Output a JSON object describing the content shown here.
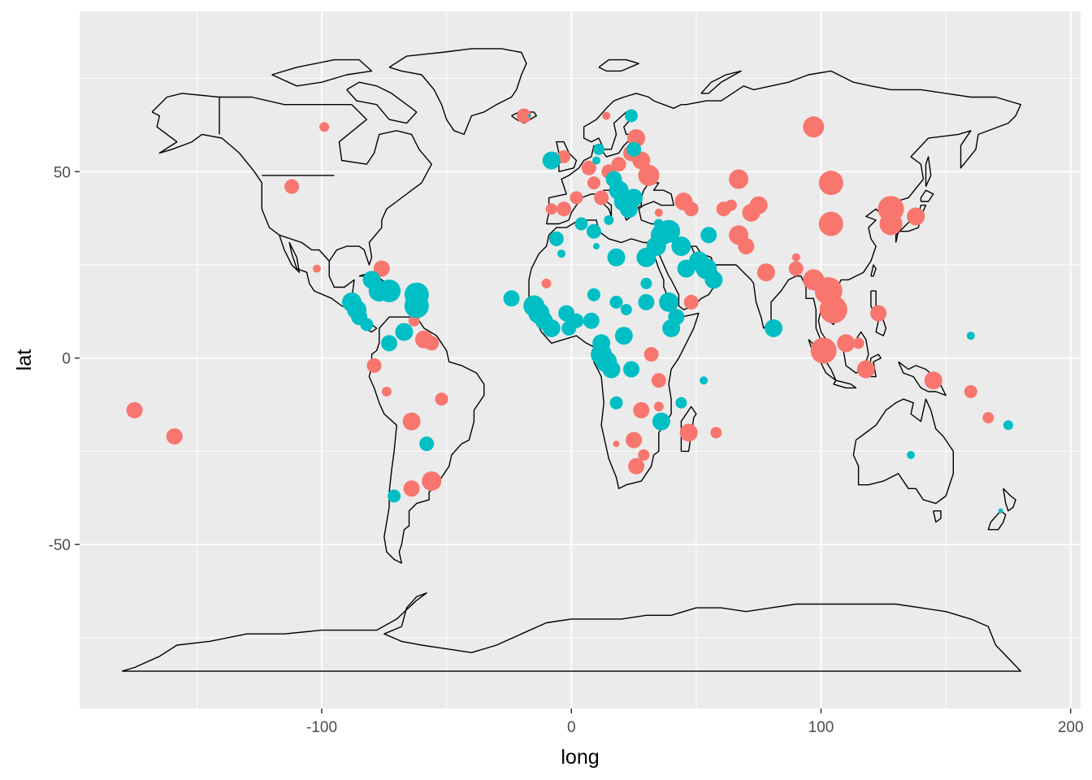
{
  "chart_data": {
    "type": "scatter",
    "title": "",
    "xlabel": "long",
    "ylabel": "lat",
    "xlim": [
      -197,
      204
    ],
    "ylim": [
      -94,
      93
    ],
    "x_ticks": [
      -100,
      0,
      100,
      200
    ],
    "y_ticks": [
      -50,
      0,
      50
    ],
    "x_tick_labels": [
      "-100",
      "0",
      "100",
      "200"
    ],
    "y_tick_labels": [
      "-50",
      "0",
      "50"
    ],
    "grid": true,
    "legend": "none",
    "colors": {
      "panel": "#ebebeb",
      "grid": "#ffffff",
      "outline": "#000000",
      "group_red": "#f8766d",
      "group_teal": "#00bfc4"
    },
    "series": [
      {
        "color": "#f8766d",
        "points": [
          {
            "x": -175,
            "y": -14,
            "size": 10
          },
          {
            "x": -159,
            "y": -21,
            "size": 10
          },
          {
            "x": -112,
            "y": 46,
            "size": 9
          },
          {
            "x": -99,
            "y": 62,
            "size": 6
          },
          {
            "x": -102,
            "y": 24,
            "size": 5
          },
          {
            "x": -76,
            "y": 24,
            "size": 10
          },
          {
            "x": -79,
            "y": -2,
            "size": 9
          },
          {
            "x": -74,
            "y": -9,
            "size": 6
          },
          {
            "x": -63,
            "y": 10,
            "size": 7
          },
          {
            "x": -59,
            "y": 5,
            "size": 11
          },
          {
            "x": -56,
            "y": 4,
            "size": 9
          },
          {
            "x": -52,
            "y": -11,
            "size": 8
          },
          {
            "x": -64,
            "y": -17,
            "size": 11
          },
          {
            "x": -64,
            "y": -35,
            "size": 10
          },
          {
            "x": -56,
            "y": -33,
            "size": 12
          },
          {
            "x": -19,
            "y": 65,
            "size": 9
          },
          {
            "x": -3,
            "y": 54,
            "size": 8
          },
          {
            "x": -8,
            "y": 40,
            "size": 7
          },
          {
            "x": -3,
            "y": 40,
            "size": 9
          },
          {
            "x": 2,
            "y": 43,
            "size": 8
          },
          {
            "x": 7,
            "y": 51,
            "size": 9
          },
          {
            "x": 9,
            "y": 47,
            "size": 8
          },
          {
            "x": 12,
            "y": 43,
            "size": 9
          },
          {
            "x": 15,
            "y": 50,
            "size": 9
          },
          {
            "x": 19,
            "y": 52,
            "size": 9
          },
          {
            "x": 26,
            "y": 59,
            "size": 11
          },
          {
            "x": 24,
            "y": 55,
            "size": 10
          },
          {
            "x": 28,
            "y": 53,
            "size": 11
          },
          {
            "x": 31,
            "y": 49,
            "size": 13
          },
          {
            "x": 35,
            "y": 39,
            "size": 5
          },
          {
            "x": 14,
            "y": 65,
            "size": 5
          },
          {
            "x": 45,
            "y": 42,
            "size": 11
          },
          {
            "x": 48,
            "y": 40,
            "size": 9
          },
          {
            "x": 61,
            "y": 40,
            "size": 9
          },
          {
            "x": 64,
            "y": 41,
            "size": 7
          },
          {
            "x": 67,
            "y": 48,
            "size": 12
          },
          {
            "x": 72,
            "y": 39,
            "size": 11
          },
          {
            "x": 75,
            "y": 41,
            "size": 11
          },
          {
            "x": 67,
            "y": 33,
            "size": 12
          },
          {
            "x": 70,
            "y": 30,
            "size": 10
          },
          {
            "x": 78,
            "y": 23,
            "size": 11
          },
          {
            "x": 90,
            "y": 27,
            "size": 5
          },
          {
            "x": 90,
            "y": 24,
            "size": 9
          },
          {
            "x": 97,
            "y": 62,
            "size": 13
          },
          {
            "x": 104,
            "y": 47,
            "size": 15
          },
          {
            "x": 104,
            "y": 36,
            "size": 15
          },
          {
            "x": 97,
            "y": 21,
            "size": 13
          },
          {
            "x": 103,
            "y": 18,
            "size": 17
          },
          {
            "x": 105,
            "y": 13,
            "size": 17
          },
          {
            "x": 101,
            "y": 2,
            "size": 16
          },
          {
            "x": 110,
            "y": 4,
            "size": 11
          },
          {
            "x": 115,
            "y": 4,
            "size": 7
          },
          {
            "x": 118,
            "y": -3,
            "size": 11
          },
          {
            "x": 128,
            "y": 40,
            "size": 16
          },
          {
            "x": 128,
            "y": 36,
            "size": 14
          },
          {
            "x": 138,
            "y": 38,
            "size": 11
          },
          {
            "x": 123,
            "y": 12,
            "size": 10
          },
          {
            "x": 145,
            "y": -6,
            "size": 11
          },
          {
            "x": 160,
            "y": -9,
            "size": 8
          },
          {
            "x": 167,
            "y": -16,
            "size": 7
          },
          {
            "x": -10,
            "y": 20,
            "size": 6
          },
          {
            "x": 32,
            "y": 1,
            "size": 9
          },
          {
            "x": 35,
            "y": -6,
            "size": 9
          },
          {
            "x": 35,
            "y": -13,
            "size": 6
          },
          {
            "x": 28,
            "y": -14,
            "size": 10
          },
          {
            "x": 25,
            "y": -22,
            "size": 10
          },
          {
            "x": 26,
            "y": -29,
            "size": 10
          },
          {
            "x": 29,
            "y": -26,
            "size": 7
          },
          {
            "x": 47,
            "y": -20,
            "size": 11
          },
          {
            "x": 58,
            "y": -20,
            "size": 7
          },
          {
            "x": 18,
            "y": -23,
            "size": 4
          },
          {
            "x": 48,
            "y": 15,
            "size": 9
          }
        ]
      },
      {
        "color": "#00bfc4",
        "points": [
          {
            "x": -88,
            "y": 15,
            "size": 12
          },
          {
            "x": -86,
            "y": 13,
            "size": 12
          },
          {
            "x": -85,
            "y": 11,
            "size": 10
          },
          {
            "x": -82,
            "y": 9,
            "size": 8
          },
          {
            "x": -80,
            "y": 21,
            "size": 11
          },
          {
            "x": -77,
            "y": 18,
            "size": 13
          },
          {
            "x": -73,
            "y": 18,
            "size": 14
          },
          {
            "x": -62,
            "y": 17,
            "size": 15
          },
          {
            "x": -62,
            "y": 14,
            "size": 15
          },
          {
            "x": -67,
            "y": 7,
            "size": 11
          },
          {
            "x": -73,
            "y": 4,
            "size": 10
          },
          {
            "x": -58,
            "y": -23,
            "size": 9
          },
          {
            "x": -71,
            "y": -37,
            "size": 8
          },
          {
            "x": -17,
            "y": 65,
            "size": 2
          },
          {
            "x": -8,
            "y": 53,
            "size": 11
          },
          {
            "x": -6,
            "y": 32,
            "size": 9
          },
          {
            "x": -4,
            "y": 28,
            "size": 5
          },
          {
            "x": 9,
            "y": 34,
            "size": 9
          },
          {
            "x": 15,
            "y": 37,
            "size": 6
          },
          {
            "x": 18,
            "y": 27,
            "size": 11
          },
          {
            "x": 30,
            "y": 27,
            "size": 12
          },
          {
            "x": 34,
            "y": 30,
            "size": 12
          },
          {
            "x": 36,
            "y": 33,
            "size": 13
          },
          {
            "x": 39,
            "y": 34,
            "size": 14
          },
          {
            "x": 44,
            "y": 30,
            "size": 12
          },
          {
            "x": 46,
            "y": 24,
            "size": 11
          },
          {
            "x": 51,
            "y": 26,
            "size": 12
          },
          {
            "x": 54,
            "y": 24,
            "size": 13
          },
          {
            "x": 57,
            "y": 21,
            "size": 11
          },
          {
            "x": 55,
            "y": 33,
            "size": 10
          },
          {
            "x": 24,
            "y": 65,
            "size": 8
          },
          {
            "x": 25,
            "y": 56,
            "size": 9
          },
          {
            "x": 11,
            "y": 56,
            "size": 7
          },
          {
            "x": 17,
            "y": 48,
            "size": 10
          },
          {
            "x": 19,
            "y": 45,
            "size": 12
          },
          {
            "x": 21,
            "y": 42,
            "size": 12
          },
          {
            "x": 25,
            "y": 43,
            "size": 11
          },
          {
            "x": 23,
            "y": 40,
            "size": 11
          },
          {
            "x": -24,
            "y": 16,
            "size": 10
          },
          {
            "x": -15,
            "y": 14,
            "size": 13
          },
          {
            "x": -13,
            "y": 12,
            "size": 13
          },
          {
            "x": -11,
            "y": 10,
            "size": 11
          },
          {
            "x": -8,
            "y": 8,
            "size": 11
          },
          {
            "x": -2,
            "y": 12,
            "size": 10
          },
          {
            "x": -1,
            "y": 8,
            "size": 9
          },
          {
            "x": 2,
            "y": 10,
            "size": 9
          },
          {
            "x": 8,
            "y": 10,
            "size": 10
          },
          {
            "x": 9,
            "y": 17,
            "size": 8
          },
          {
            "x": 18,
            "y": 15,
            "size": 8
          },
          {
            "x": 22,
            "y": 13,
            "size": 7
          },
          {
            "x": 30,
            "y": 15,
            "size": 10
          },
          {
            "x": 39,
            "y": 15,
            "size": 12
          },
          {
            "x": 42,
            "y": 11,
            "size": 10
          },
          {
            "x": 40,
            "y": 8,
            "size": 11
          },
          {
            "x": 12,
            "y": 4,
            "size": 11
          },
          {
            "x": 12,
            "y": 1,
            "size": 13
          },
          {
            "x": 14,
            "y": -1,
            "size": 13
          },
          {
            "x": 16,
            "y": -3,
            "size": 11
          },
          {
            "x": 21,
            "y": 6,
            "size": 11
          },
          {
            "x": 24,
            "y": -3,
            "size": 10
          },
          {
            "x": 18,
            "y": -12,
            "size": 8
          },
          {
            "x": 36,
            "y": -17,
            "size": 11
          },
          {
            "x": 44,
            "y": -12,
            "size": 7
          },
          {
            "x": 53,
            "y": -6,
            "size": 5
          },
          {
            "x": 81,
            "y": 8,
            "size": 11
          },
          {
            "x": 136,
            "y": -26,
            "size": 5
          },
          {
            "x": 160,
            "y": 6,
            "size": 5
          },
          {
            "x": 175,
            "y": -18,
            "size": 6
          },
          {
            "x": 172,
            "y": -41,
            "size": 3
          },
          {
            "x": 10,
            "y": 30,
            "size": 4
          },
          {
            "x": 30,
            "y": 20,
            "size": 7
          },
          {
            "x": 4,
            "y": 36,
            "size": 8
          },
          {
            "x": 10,
            "y": 53,
            "size": 5
          },
          {
            "x": 35,
            "y": 36,
            "size": 6
          }
        ]
      }
    ]
  }
}
